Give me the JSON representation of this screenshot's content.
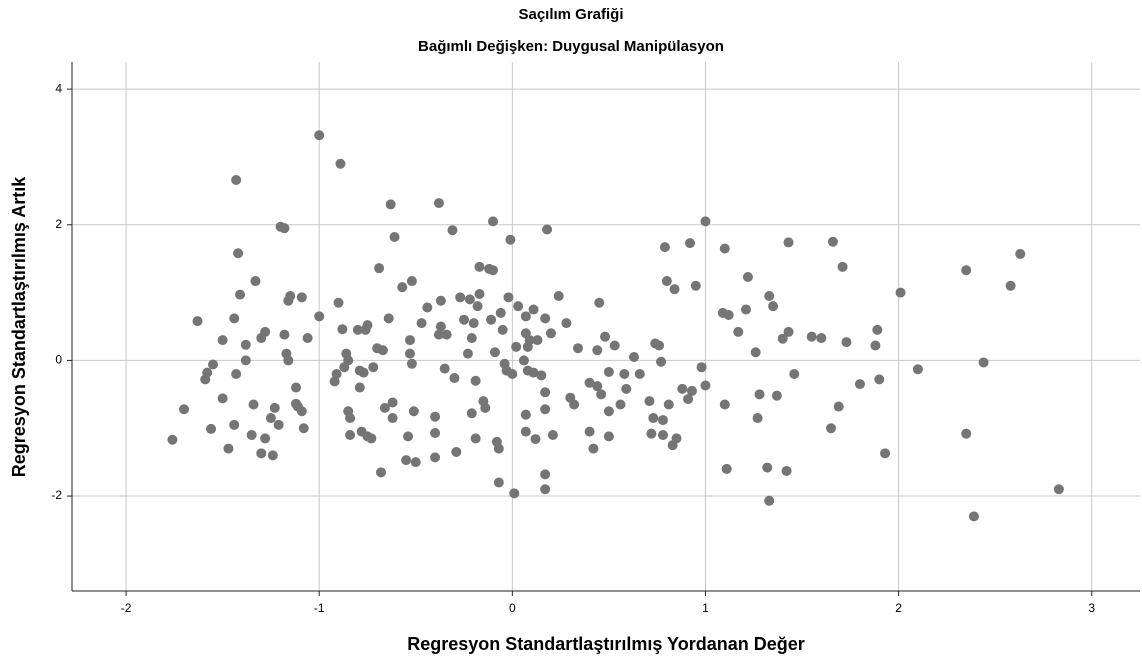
{
  "chart_data": {
    "type": "scatter",
    "title": "Saçılım Grafiği",
    "subtitle": "Bağımlı Değişken: Duygusal Manipülasyon",
    "xlabel": "Regresyon Standartlaştırılmış Yordanan Değer",
    "ylabel": "Regresyon Standartlaştırılmış Artık",
    "color": "#757575",
    "grid": true,
    "xlim": [
      -2.28,
      3.25
    ],
    "ylim": [
      -3.4,
      4.4
    ],
    "xticks": [
      -2,
      -1,
      0,
      1,
      2,
      3
    ],
    "yticks": [
      -2,
      0,
      2,
      4
    ],
    "x": [
      -1.76,
      -1.7,
      -1.63,
      -1.59,
      -1.58,
      -1.55,
      -1.56,
      -1.5,
      -1.5,
      -1.47,
      -1.44,
      -1.43,
      -1.43,
      -1.42,
      -1.41,
      -1.44,
      -1.38,
      -1.38,
      -1.35,
      -1.34,
      -1.33,
      -1.3,
      -1.3,
      -1.28,
      -1.28,
      -1.25,
      -1.24,
      -1.23,
      -1.21,
      -1.2,
      -1.18,
      -1.18,
      -1.17,
      -1.16,
      -1.16,
      -1.15,
      -1.12,
      -1.12,
      -1.11,
      -1.09,
      -1.09,
      -1.08,
      -1.06,
      -1.0,
      -1.0,
      -0.92,
      -0.91,
      -0.9,
      -0.89,
      -0.88,
      -0.87,
      -0.86,
      -0.85,
      -0.85,
      -0.84,
      -0.84,
      -0.8,
      -0.79,
      -0.79,
      -0.78,
      -0.77,
      -0.76,
      -0.75,
      -0.75,
      -0.73,
      -0.72,
      -0.7,
      -0.69,
      -0.68,
      -0.67,
      -0.66,
      -0.64,
      -0.63,
      -0.62,
      -0.62,
      -0.61,
      -0.57,
      -0.55,
      -0.54,
      -0.53,
      -0.53,
      -0.52,
      -0.52,
      -0.51,
      -0.5,
      -0.47,
      -0.44,
      -0.4,
      -0.4,
      -0.4,
      -0.38,
      -0.38,
      -0.37,
      -0.37,
      -0.35,
      -0.34,
      -0.31,
      -0.3,
      -0.29,
      -0.27,
      -0.25,
      -0.23,
      -0.22,
      -0.21,
      -0.21,
      -0.2,
      -0.19,
      -0.19,
      -0.18,
      -0.17,
      -0.17,
      -0.15,
      -0.14,
      -0.12,
      -0.11,
      -0.1,
      -0.1,
      -0.09,
      -0.08,
      -0.07,
      -0.07,
      -0.06,
      -0.05,
      -0.04,
      -0.03,
      -0.02,
      -0.01,
      0.0,
      0.01,
      0.02,
      0.03,
      0.06,
      0.07,
      0.07,
      0.07,
      0.07,
      0.08,
      0.08,
      0.09,
      0.11,
      0.11,
      0.12,
      0.13,
      0.15,
      0.17,
      0.17,
      0.17,
      0.17,
      0.17,
      0.18,
      0.2,
      0.21,
      0.24,
      0.28,
      0.3,
      0.32,
      0.34,
      0.4,
      0.4,
      0.42,
      0.44,
      0.44,
      0.45,
      0.46,
      0.48,
      0.5,
      0.5,
      0.5,
      0.53,
      0.56,
      0.58,
      0.59,
      0.63,
      0.66,
      0.71,
      0.72,
      0.73,
      0.74,
      0.76,
      0.77,
      0.78,
      0.78,
      0.79,
      0.8,
      0.81,
      0.83,
      0.84,
      0.85,
      0.88,
      0.91,
      0.92,
      0.93,
      0.95,
      0.98,
      1.0,
      1.0,
      1.09,
      1.1,
      1.1,
      1.11,
      1.12,
      1.17,
      1.21,
      1.22,
      1.26,
      1.27,
      1.28,
      1.32,
      1.33,
      1.33,
      1.35,
      1.37,
      1.4,
      1.42,
      1.43,
      1.43,
      1.46,
      1.55,
      1.6,
      1.65,
      1.66,
      1.69,
      1.71,
      1.73,
      1.8,
      1.88,
      1.89,
      1.9,
      1.93,
      2.01,
      2.1,
      2.35,
      2.35,
      2.39,
      2.44,
      2.58,
      2.63,
      2.83
    ],
    "values": [
      -1.17,
      -0.72,
      0.58,
      -0.28,
      -0.18,
      -0.06,
      -1.01,
      -0.56,
      0.3,
      -1.3,
      0.62,
      -0.2,
      2.66,
      1.58,
      0.97,
      -0.95,
      0.23,
      0.0,
      -1.1,
      -0.65,
      1.17,
      0.33,
      -1.37,
      -1.15,
      0.42,
      -0.85,
      -1.4,
      -0.7,
      -0.95,
      1.97,
      1.95,
      0.38,
      0.1,
      0.0,
      0.88,
      0.95,
      -0.64,
      -0.4,
      -0.68,
      0.93,
      -0.75,
      -1.0,
      0.33,
      3.32,
      0.65,
      -0.31,
      -0.2,
      0.85,
      2.9,
      0.46,
      -0.1,
      0.1,
      0.0,
      -0.75,
      -0.85,
      -1.1,
      0.45,
      -0.15,
      -0.4,
      -1.05,
      -0.18,
      0.45,
      0.52,
      -1.12,
      -1.15,
      -0.1,
      0.18,
      1.36,
      -1.65,
      0.15,
      -0.7,
      0.62,
      2.3,
      -0.62,
      -0.85,
      1.82,
      1.08,
      -1.47,
      -1.12,
      0.3,
      0.1,
      -0.05,
      1.17,
      -0.75,
      -1.5,
      0.55,
      0.78,
      -1.43,
      -0.83,
      -1.07,
      2.32,
      0.38,
      0.88,
      0.5,
      -0.12,
      0.38,
      1.92,
      -0.26,
      -1.35,
      0.93,
      0.6,
      0.1,
      0.9,
      0.33,
      -0.78,
      0.55,
      -1.15,
      -0.3,
      0.8,
      0.98,
      1.38,
      -0.6,
      -0.7,
      1.35,
      0.6,
      1.33,
      2.05,
      0.12,
      -1.2,
      -1.3,
      -1.8,
      0.7,
      0.45,
      -0.05,
      -0.15,
      0.93,
      1.78,
      -0.2,
      -1.96,
      0.2,
      0.8,
      0.0,
      0.65,
      -0.8,
      -1.05,
      0.4,
      -0.15,
      0.2,
      0.3,
      0.75,
      -0.18,
      -1.16,
      0.3,
      -0.22,
      0.62,
      -0.47,
      -0.72,
      -1.68,
      -1.9,
      1.93,
      0.4,
      -1.1,
      0.95,
      0.55,
      -0.55,
      -0.65,
      0.18,
      -1.05,
      -0.33,
      -1.3,
      -0.38,
      0.15,
      0.85,
      -0.5,
      0.35,
      -0.17,
      -0.75,
      -1.12,
      0.22,
      -0.65,
      -0.2,
      -0.42,
      0.05,
      -0.2,
      -0.6,
      -1.08,
      -0.85,
      0.25,
      0.22,
      -0.02,
      -0.88,
      -1.1,
      1.67,
      1.17,
      -0.65,
      -1.25,
      1.05,
      -1.15,
      -0.42,
      -0.57,
      1.73,
      -0.45,
      1.1,
      -0.1,
      2.05,
      -0.37,
      0.7,
      -0.65,
      1.65,
      -1.6,
      0.67,
      0.42,
      0.75,
      1.23,
      0.12,
      -0.85,
      -0.5,
      -1.58,
      -2.07,
      0.95,
      0.8,
      -0.52,
      0.32,
      -1.63,
      1.74,
      0.42,
      -0.2,
      0.35,
      0.33,
      -1.0,
      1.75,
      -0.68,
      1.38,
      0.27,
      -0.35,
      0.22,
      0.45,
      -0.28,
      -1.37,
      1.0,
      -0.13,
      -1.08,
      1.33,
      -2.3,
      -0.03,
      1.1,
      1.57,
      -1.9
    ]
  }
}
